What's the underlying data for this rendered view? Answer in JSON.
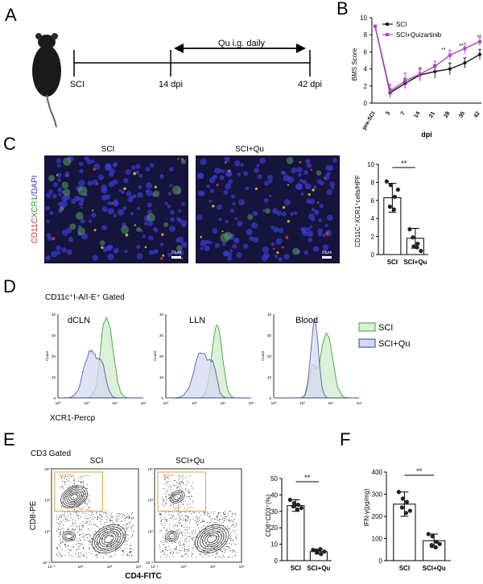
{
  "panel_letters": {
    "a": "A",
    "b": "B",
    "c": "C",
    "d": "D",
    "e": "E",
    "f": "F"
  },
  "panel_a": {
    "scheme_label": "Qu i.g. daily",
    "timepoints": [
      "SCI",
      "14 dpi",
      "42 dpi"
    ]
  },
  "panel_b": {
    "ylabel": "BMS Score",
    "xlabel": "dpi",
    "legend": [
      "SCI",
      "SCI+Quizartinib"
    ],
    "significance": [
      "**",
      "**",
      "**",
      "**"
    ]
  },
  "panel_c": {
    "col_titles": [
      "SCI",
      "SCI+Qu"
    ],
    "stain_label": {
      "cd11c": "CD11C",
      "xcr1": "XCR1",
      "dapi": "/DAPI"
    },
    "scale_bar": [
      "20μm",
      "20μm"
    ],
    "bar_ylabel": "CD11C⁺XCR1⁺cells/HPF",
    "significance": "**"
  },
  "panel_d": {
    "gate_title": "CD11c⁺I-A/I-E⁺ Gated",
    "subtitles": [
      "dCLN",
      "LLN",
      "Blood"
    ],
    "legend": [
      "SCI",
      "SCI+Qu"
    ],
    "xaxis_label": "XCR1-Percp",
    "ytick_labels": [
      "0",
      "10",
      "20",
      "30",
      "40"
    ],
    "xtick_labels": [
      "10⁰",
      "10³",
      "10⁴",
      "10⁵"
    ],
    "ylabel_small": "Count"
  },
  "panel_e": {
    "gate_title": "CD3 Gated",
    "plot_titles": [
      "SCI",
      "SCI+Qu"
    ],
    "gate_percent": [
      "32.00%",
      "3.04%"
    ],
    "y_axis_label": "CD8-PE",
    "x_axis_label": "CD4-FITC",
    "tick_labels": [
      "10⁻²",
      "10⁰",
      "10³",
      "10⁵"
    ],
    "bar_ylabel": "CD8⁺CD3⁺(%)",
    "significance": "**"
  },
  "panel_f": {
    "bar_ylabel": "IFN-γ(pg/mg)",
    "significance": "**"
  },
  "chart_data": [
    {
      "type": "line",
      "x": [
        "pre-SCI",
        "3",
        "7",
        "14",
        "21",
        "28",
        "35",
        "42"
      ],
      "xlabel": "dpi",
      "ylabel": "BMS Score",
      "ylim": [
        0,
        10
      ],
      "yticks": [
        0,
        2,
        4,
        6,
        8,
        10
      ],
      "series": [
        {
          "name": "SCI",
          "values": [
            9,
            1.2,
            2.3,
            3.3,
            3.7,
            4.0,
            4.7,
            5.7
          ],
          "err": [
            0,
            0.5,
            0.6,
            0.7,
            0.8,
            0.7,
            0.6,
            0.6
          ],
          "color": "#111111"
        },
        {
          "name": "SCI+Quizartinib",
          "values": [
            9,
            1.4,
            2.6,
            3.4,
            4.3,
            5.6,
            6.4,
            7.2
          ],
          "err": [
            0,
            0.8,
            0.9,
            0.8,
            0.6,
            0.6,
            0.6,
            0.5
          ],
          "color": "#b33fc9"
        }
      ],
      "legend_position": "top-right",
      "grid": false
    },
    {
      "type": "bar",
      "categories": [
        "SCI",
        "SCI+Qu"
      ],
      "values": [
        6.3,
        1.8
      ],
      "err": [
        1.6,
        1.1
      ],
      "points": [
        [
          8.1,
          7.7,
          6.4,
          5.3,
          5.0,
          7.2
        ],
        [
          2.8,
          0.9,
          1.2,
          1.9,
          0.8,
          0.4
        ]
      ],
      "ylabel": "CD11C⁺XCR1⁺cells/HPF",
      "ylim": [
        0,
        10
      ],
      "yticks": [
        0,
        2,
        4,
        6,
        8,
        10
      ]
    },
    {
      "type": "bar",
      "categories": [
        "SCI",
        "SCI+Qu"
      ],
      "values": [
        33.5,
        5.5
      ],
      "err": [
        3.5,
        1.5
      ],
      "points": [
        [
          37,
          35,
          34,
          33,
          31,
          32
        ],
        [
          6.5,
          5,
          4,
          6,
          7,
          5.5
        ]
      ],
      "ylabel": "CD8⁺CD3⁺(%)",
      "ylim": [
        0,
        50
      ],
      "yticks": [
        0,
        10,
        20,
        30,
        40,
        50
      ]
    },
    {
      "type": "bar",
      "categories": [
        "SCI",
        "SCI+Qu"
      ],
      "values": [
        255,
        90
      ],
      "err": [
        55,
        30
      ],
      "points": [
        [
          310,
          280,
          265,
          240,
          215,
          225
        ],
        [
          120,
          110,
          85,
          70,
          60,
          75
        ]
      ],
      "ylabel": "IFN-γ(pg/mg)",
      "ylim": [
        0,
        400
      ],
      "yticks": [
        0,
        100,
        200,
        300,
        400
      ]
    }
  ],
  "colors": {
    "sci_green": "#3aa33a",
    "qu_blue": "#3a3aa8",
    "qu_purple": "#b33fc9",
    "gate_orange": "#e0a040"
  }
}
